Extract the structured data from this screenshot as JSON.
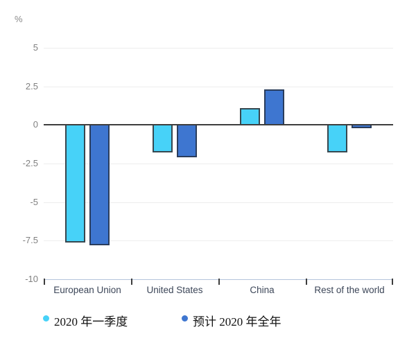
{
  "chart_data": {
    "type": "bar",
    "title": "",
    "ylabel": "%",
    "xlabel": "",
    "categories": [
      "European Union",
      "United States",
      "China",
      "Rest of the world"
    ],
    "series": [
      {
        "name": "2020 年一季度",
        "values": [
          -7.6,
          -1.8,
          1.1,
          -1.8
        ],
        "color": "#47d2f8",
        "border_color": "#37474f"
      },
      {
        "name": "预计 2020 年全年",
        "values": [
          -7.8,
          -2.1,
          2.3,
          -0.2
        ],
        "color": "#3e76d0",
        "border_color": "#2a3d5c"
      }
    ],
    "ylim": [
      -10,
      5
    ],
    "y_ticks": [
      5,
      2.5,
      0,
      -2.5,
      -5,
      -7.5,
      -10
    ],
    "grid": true,
    "legend_position": "bottom"
  },
  "style": {
    "gridline_color": "#ededed",
    "zero_line_color": "#3d3d3d",
    "axis_line_color": "#b4c3dc",
    "tick_mark_color": "#3d3d3d",
    "y_label_color": "#808080",
    "category_label_color": "#3c4658",
    "background": "#ffffff"
  }
}
